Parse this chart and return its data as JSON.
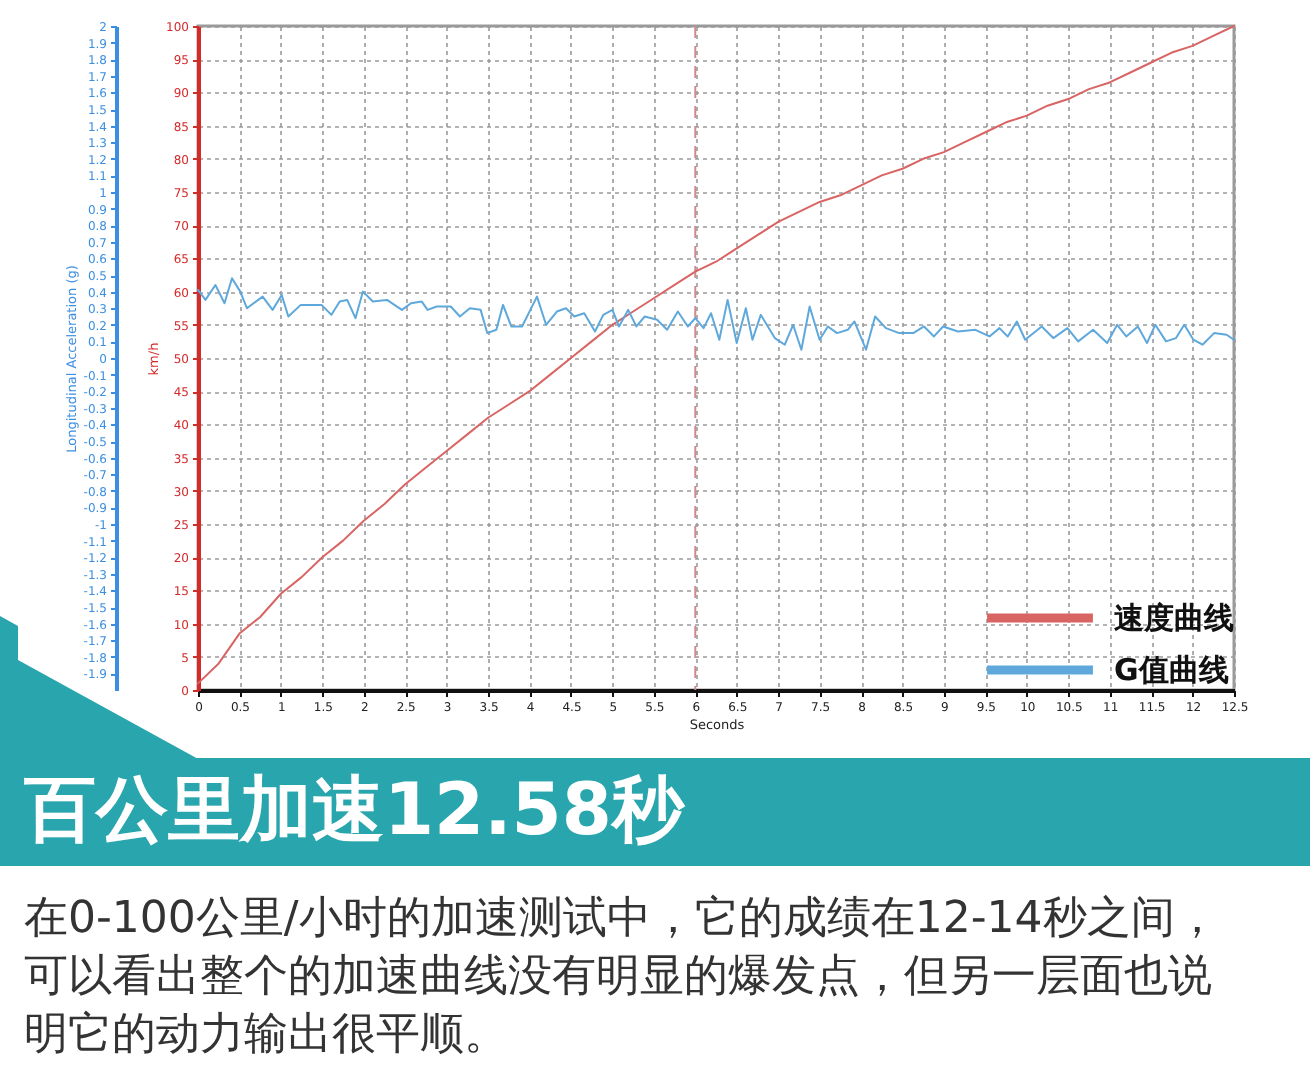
{
  "chart_data": {
    "type": "line",
    "title": "百公里加速12.58秒",
    "xlabel": "Seconds",
    "ylabel": "km/h",
    "y2label": "Longitudinal Acceleration (g)",
    "annotations": [
      "在0-100公里/小时的加速测试中，它的成绩在12-14秒之间，可以看出整个的加速曲线没有明显的爆发点，但另一层面也说明它的动力输出很平顺。"
    ],
    "series": [
      {
        "name": "速度曲线",
        "color": "#d96464",
        "x": [
          0,
          0.25,
          0.5,
          0.75,
          1,
          1.25,
          1.5,
          1.75,
          2,
          2.25,
          2.5,
          2.75,
          3,
          3.25,
          3.5,
          3.75,
          4,
          4.25,
          4.5,
          4.75,
          5,
          5.25,
          5.5,
          5.75,
          6,
          6.25,
          6.5,
          6.75,
          7,
          7.25,
          7.5,
          7.75,
          8,
          8.25,
          8.5,
          8.75,
          9,
          9.25,
          9.5,
          9.75,
          10,
          10.25,
          10.5,
          10.75,
          11,
          11.25,
          11.5,
          11.75,
          12,
          12.25,
          12.5
        ],
        "values": [
          1,
          4,
          8.5,
          11,
          14.5,
          17,
          20,
          22.5,
          25.5,
          28,
          31,
          33.5,
          36,
          38.5,
          41,
          43,
          45,
          47.5,
          50,
          52.5,
          55,
          57,
          59,
          61,
          63,
          64.5,
          66.5,
          68.5,
          70.5,
          72,
          73.5,
          74.5,
          76,
          77.5,
          78.5,
          80,
          81,
          82.5,
          84,
          85.5,
          86.5,
          88,
          89,
          90.5,
          91.5,
          93,
          94.5,
          96,
          97,
          98.5,
          100
        ]
      },
      {
        "name": "G值曲线",
        "color": "#5ea8dc",
        "axis": "y2",
        "x": [
          0,
          0.09,
          0.21,
          0.32,
          0.41,
          0.51,
          0.59,
          0.78,
          0.9,
          1.01,
          1.09,
          1.24,
          1.49,
          1.61,
          1.71,
          1.8,
          1.9,
          1.99,
          2.11,
          2.28,
          2.46,
          2.57,
          2.7,
          2.77,
          2.88,
          3.05,
          3.16,
          3.28,
          3.41,
          3.49,
          3.6,
          3.68,
          3.78,
          3.91,
          4.09,
          4.2,
          4.33,
          4.44,
          4.54,
          4.66,
          4.79,
          4.89,
          5,
          5.08,
          5.19,
          5.29,
          5.39,
          5.54,
          5.66,
          5.79,
          5.91,
          6,
          6.1,
          6.19,
          6.29,
          6.39,
          6.5,
          6.61,
          6.69,
          6.79,
          6.96,
          7.08,
          7.18,
          7.28,
          7.38,
          7.5,
          7.6,
          7.71,
          7.84,
          7.92,
          8.06,
          8.17,
          8.3,
          8.46,
          8.63,
          8.76,
          8.88,
          8.99,
          9.17,
          9.38,
          9.55,
          9.67,
          9.77,
          9.88,
          9.98,
          10.18,
          10.32,
          10.49,
          10.62,
          10.8,
          10.97,
          11.09,
          11.2,
          11.34,
          11.45,
          11.55,
          11.68,
          11.8,
          11.9,
          12.01,
          12.12,
          12.26,
          12.41,
          12.5
        ],
        "values": [
          0.41,
          0.35,
          0.44,
          0.33,
          0.48,
          0.4,
          0.3,
          0.37,
          0.29,
          0.38,
          0.25,
          0.32,
          0.32,
          0.26,
          0.34,
          0.35,
          0.24,
          0.4,
          0.34,
          0.35,
          0.29,
          0.33,
          0.34,
          0.29,
          0.31,
          0.31,
          0.25,
          0.3,
          0.29,
          0.15,
          0.17,
          0.32,
          0.19,
          0.19,
          0.37,
          0.2,
          0.28,
          0.3,
          0.25,
          0.27,
          0.16,
          0.26,
          0.29,
          0.19,
          0.29,
          0.19,
          0.25,
          0.23,
          0.17,
          0.28,
          0.19,
          0.24,
          0.18,
          0.27,
          0.11,
          0.35,
          0.09,
          0.3,
          0.11,
          0.26,
          0.12,
          0.08,
          0.2,
          0.05,
          0.31,
          0.11,
          0.19,
          0.15,
          0.17,
          0.22,
          0.05,
          0.25,
          0.18,
          0.15,
          0.15,
          0.19,
          0.13,
          0.19,
          0.16,
          0.17,
          0.13,
          0.18,
          0.13,
          0.22,
          0.11,
          0.19,
          0.12,
          0.18,
          0.1,
          0.17,
          0.09,
          0.2,
          0.13,
          0.19,
          0.09,
          0.2,
          0.1,
          0.12,
          0.2,
          0.11,
          0.08,
          0.15,
          0.14,
          0.11
        ]
      }
    ],
    "xlim": [
      0,
      12.5
    ],
    "xticks": [
      0,
      0.5,
      1,
      1.5,
      2,
      2.5,
      3,
      3.5,
      4,
      4.5,
      5,
      5.5,
      6,
      6.5,
      7,
      7.5,
      8,
      8.5,
      9,
      9.5,
      10,
      10.5,
      11,
      11.5,
      12,
      12.5
    ],
    "ylim": [
      0,
      100
    ],
    "yticks": [
      0,
      5,
      10,
      15,
      20,
      25,
      30,
      35,
      40,
      45,
      50,
      55,
      60,
      65,
      70,
      75,
      80,
      85,
      90,
      95,
      100
    ],
    "y2lim": [
      -2,
      2
    ],
    "y2ticks": [
      -1.9,
      -1.8,
      -1.7,
      -1.6,
      -1.5,
      -1.4,
      -1.3,
      -1.2,
      -1.1,
      -1,
      -0.9,
      -0.8,
      -0.7,
      -0.6,
      -0.5,
      -0.4,
      -0.3,
      -0.2,
      -0.1,
      0,
      0.1,
      0.2,
      0.3,
      0.4,
      0.5,
      0.6,
      0.7,
      0.8,
      0.9,
      1,
      1.1,
      1.2,
      1.3,
      1.4,
      1.5,
      1.6,
      1.7,
      1.8,
      1.9,
      2
    ],
    "ref_lines": [
      {
        "axis": "x",
        "value": 6,
        "color": "#cf8c8c",
        "line_style": "dashed"
      }
    ],
    "grid": true,
    "legend": "bottom right"
  }
}
